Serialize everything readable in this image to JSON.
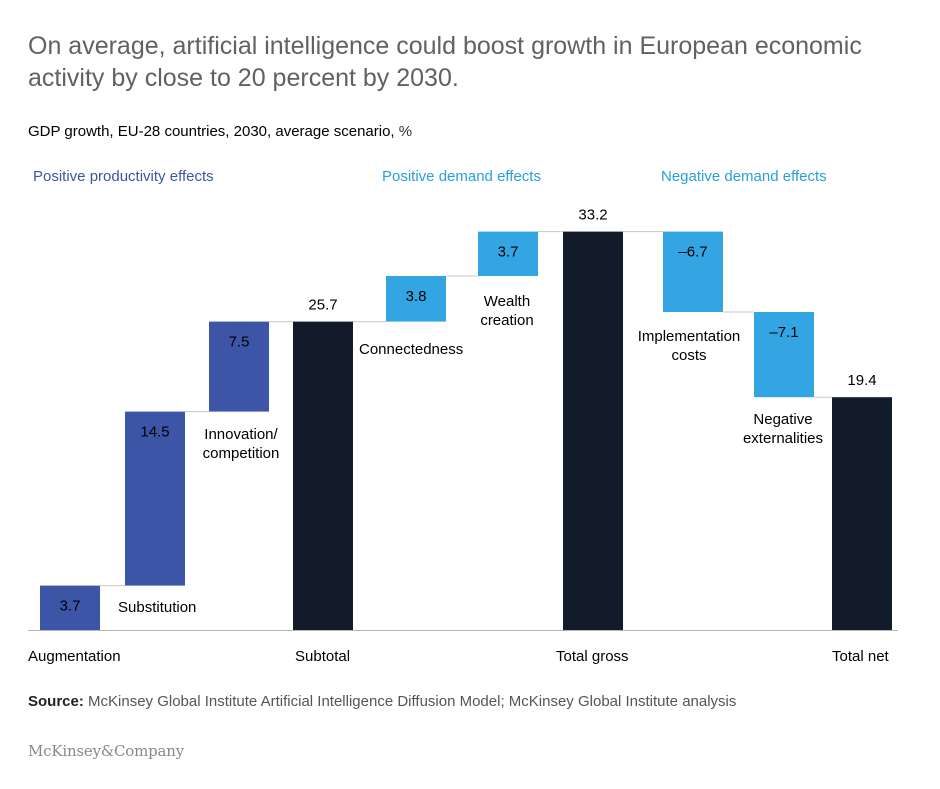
{
  "title": "On average, artificial intelligence could boost growth in European economic activity by close to 20 percent by 2030.",
  "subtitle": "GDP growth, EU-28 countries, 2030, average scenario,",
  "unit": "%",
  "source_label": "Source:",
  "source_text": "McKinsey Global Institute Artificial Intelligence Diffusion Model; McKinsey Global Institute analysis",
  "logo": "McKinsey&Company",
  "colors": {
    "productivity": "#3d55a6",
    "positive_demand": "#33a5e3",
    "negative_demand": "#33a5e3",
    "total": "#121b2a",
    "group_productivity": "#3d55a6",
    "group_positive_demand": "#2b9fdc",
    "group_negative_demand": "#2b9fdc"
  },
  "chart_data": {
    "type": "waterfall",
    "ylim": [
      0,
      36
    ],
    "groups": [
      {
        "label": "Positive productivity effects",
        "color": "#3d55a6"
      },
      {
        "label": "Positive demand effects",
        "color": "#2b9fdc"
      },
      {
        "label": "Negative demand effects",
        "color": "#2b9fdc"
      }
    ],
    "bars": [
      {
        "category": "Augmentation",
        "value": 3.7,
        "kind": "productivity",
        "value_label": "3.7"
      },
      {
        "category": "Substitution",
        "value": 14.5,
        "kind": "productivity",
        "value_label": "14.5"
      },
      {
        "category": "Innovation/ competition",
        "value": 7.5,
        "kind": "productivity",
        "value_label": "7.5"
      },
      {
        "category": "Subtotal",
        "value": 25.7,
        "kind": "total",
        "value_label": "25.7"
      },
      {
        "category": "Connectedness",
        "value": 3.8,
        "kind": "positive_demand",
        "value_label": "3.8"
      },
      {
        "category": "Wealth creation",
        "value": 3.7,
        "kind": "positive_demand",
        "value_label": "3.7"
      },
      {
        "category": "Total gross",
        "value": 33.2,
        "kind": "total",
        "value_label": "33.2"
      },
      {
        "category": "Implementation costs",
        "value": -6.7,
        "kind": "negative_demand",
        "value_label": "–6.7"
      },
      {
        "category": "Negative externalities",
        "value": -7.1,
        "kind": "negative_demand",
        "value_label": "–7.1"
      },
      {
        "category": "Total net",
        "value": 19.4,
        "kind": "total",
        "value_label": "19.4"
      }
    ]
  }
}
